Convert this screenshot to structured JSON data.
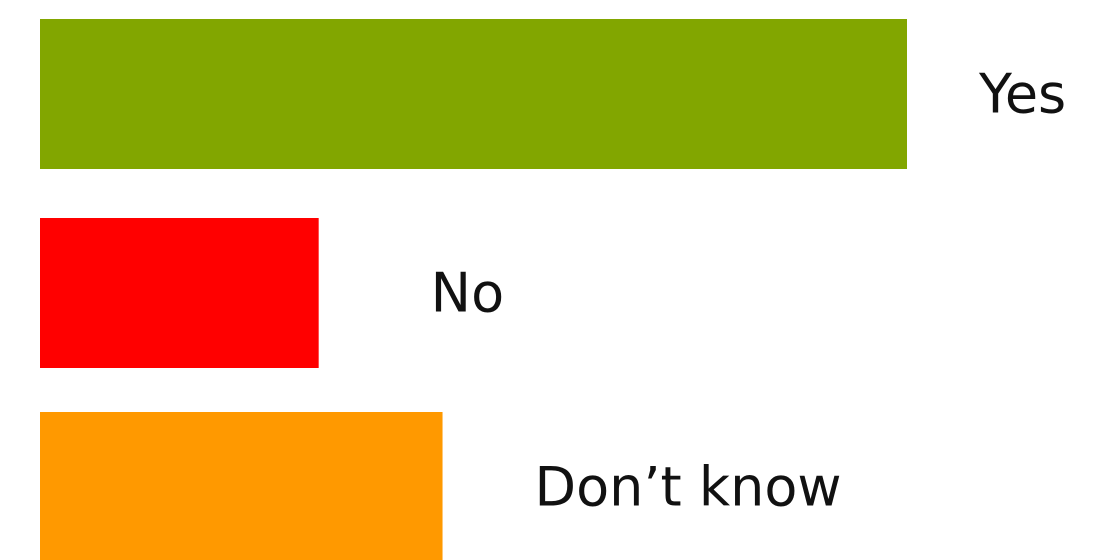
{
  "chart_data": {
    "type": "bar",
    "orientation": "horizontal",
    "categories": [
      "Yes",
      "No",
      "Don’t know"
    ],
    "values": [
      56,
      18,
      26
    ],
    "colors": [
      "#82a600",
      "#ff0000",
      "#ff9900"
    ]
  }
}
